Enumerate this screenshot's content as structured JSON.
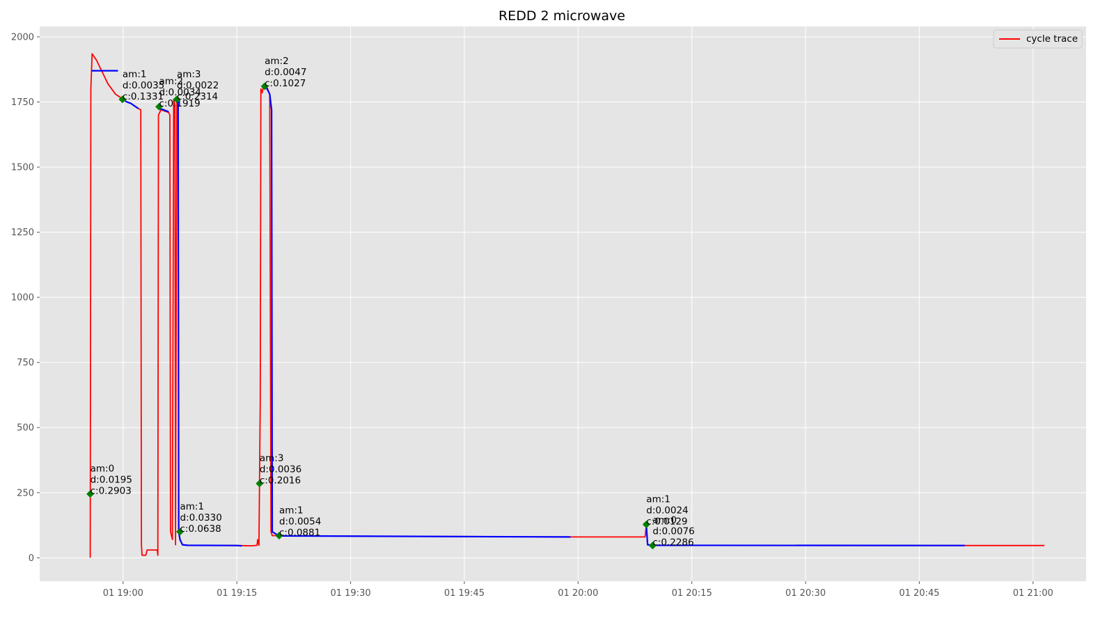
{
  "chart_data": {
    "type": "line",
    "title": "REDD 2 microwave",
    "xlabel": "",
    "ylabel": "",
    "x_axis": {
      "start": "18:45",
      "end": "21:07",
      "unit": "time",
      "date_prefix": "01"
    },
    "xlim": [
      "18:49",
      "21:07"
    ],
    "ylim": [
      -90,
      2040
    ],
    "x_ticks": [
      {
        "t": "19:00",
        "label": "01 19:00"
      },
      {
        "t": "19:15",
        "label": "01 19:15"
      },
      {
        "t": "19:30",
        "label": "01 19:30"
      },
      {
        "t": "19:45",
        "label": "01 19:45"
      },
      {
        "t": "20:00",
        "label": "01 20:00"
      },
      {
        "t": "20:15",
        "label": "01 20:15"
      },
      {
        "t": "20:30",
        "label": "01 20:30"
      },
      {
        "t": "20:45",
        "label": "01 20:45"
      },
      {
        "t": "21:00",
        "label": "01 21:00"
      }
    ],
    "y_ticks": [
      0,
      250,
      500,
      750,
      1000,
      1250,
      1500,
      1750,
      2000
    ],
    "grid": true,
    "legend": {
      "placement": "top-right",
      "entries": [
        {
          "label": "cycle trace",
          "color": "#ff0000"
        }
      ]
    },
    "series": [
      {
        "name": "cycle trace",
        "color": "#ff0000",
        "points": [
          [
            "18:55:40",
            0
          ],
          [
            "18:55:45",
            1800
          ],
          [
            "18:55:55",
            1935
          ],
          [
            "18:56:30",
            1910
          ],
          [
            "18:57:00",
            1880
          ],
          [
            "18:57:30",
            1850
          ],
          [
            "18:58:00",
            1820
          ],
          [
            "18:58:30",
            1800
          ],
          [
            "18:59:00",
            1780
          ],
          [
            "18:59:30",
            1770
          ],
          [
            "19:00:00",
            1760
          ],
          [
            "19:00:30",
            1750
          ],
          [
            "19:01:00",
            1745
          ],
          [
            "19:01:30",
            1735
          ],
          [
            "19:02:00",
            1725
          ],
          [
            "19:02:20",
            1720
          ],
          [
            "19:02:25",
            50
          ],
          [
            "19:02:30",
            10
          ],
          [
            "19:03:00",
            10
          ],
          [
            "19:03:10",
            30
          ],
          [
            "19:04:30",
            30
          ],
          [
            "19:04:35",
            10
          ],
          [
            "19:04:40",
            1700
          ],
          [
            "19:05:00",
            1720
          ],
          [
            "19:05:30",
            1715
          ],
          [
            "19:06:00",
            1710
          ],
          [
            "19:06:10",
            1700
          ],
          [
            "19:06:15",
            100
          ],
          [
            "19:06:30",
            70
          ],
          [
            "19:06:40",
            1760
          ],
          [
            "19:06:50",
            1740
          ],
          [
            "19:06:55",
            50
          ],
          [
            "19:07:05",
            1760
          ],
          [
            "19:07:15",
            1740
          ],
          [
            "19:07:20",
            100
          ],
          [
            "19:07:30",
            70
          ],
          [
            "19:07:50",
            50
          ],
          [
            "19:08:30",
            48
          ],
          [
            "19:15:00",
            47
          ],
          [
            "19:17:00",
            46
          ],
          [
            "19:17:40",
            48
          ],
          [
            "19:17:45",
            70
          ],
          [
            "19:17:55",
            48
          ],
          [
            "19:18:05",
            600
          ],
          [
            "19:18:10",
            1800
          ],
          [
            "19:18:20",
            1785
          ],
          [
            "19:18:30",
            1810
          ],
          [
            "19:19:00",
            1805
          ],
          [
            "19:19:20",
            1780
          ],
          [
            "19:19:30",
            100
          ],
          [
            "19:19:40",
            85
          ],
          [
            "19:20:30",
            85
          ],
          [
            "19:21:00",
            84
          ],
          [
            "20:00:00",
            80
          ],
          [
            "20:08:50",
            80
          ],
          [
            "20:09:00",
            125
          ],
          [
            "20:09:10",
            50
          ],
          [
            "20:10:00",
            48
          ],
          [
            "20:51:00",
            47
          ],
          [
            "21:01:30",
            47
          ]
        ]
      },
      {
        "name": "",
        "color": "#0000ff",
        "points": [
          [
            "18:55:50",
            1870
          ],
          [
            "18:59:20",
            1870
          ]
        ]
      },
      {
        "name": "",
        "color": "#0000ff",
        "points": [
          [
            "19:00:00",
            1760
          ],
          [
            "19:00:30",
            1750
          ],
          [
            "19:01:00",
            1745
          ],
          [
            "19:01:30",
            1735
          ],
          [
            "19:02:00",
            1725
          ]
        ]
      },
      {
        "name": "",
        "color": "#0000ff",
        "points": [
          [
            "19:04:45",
            1725
          ],
          [
            "19:05:20",
            1720
          ],
          [
            "19:06:00",
            1712
          ]
        ]
      },
      {
        "name": "",
        "color": "#0000ff",
        "points": [
          [
            "19:07:15",
            1760
          ],
          [
            "19:07:20",
            100
          ],
          [
            "19:07:30",
            70
          ],
          [
            "19:07:50",
            50
          ],
          [
            "19:08:30",
            48
          ],
          [
            "19:15:00",
            47
          ],
          [
            "19:15:40",
            46
          ]
        ]
      },
      {
        "name": "",
        "color": "#0000ff",
        "points": [
          [
            "19:18:40",
            1810
          ],
          [
            "19:19:00",
            1800
          ],
          [
            "19:19:20",
            1780
          ],
          [
            "19:19:35",
            1720
          ],
          [
            "19:19:40",
            100
          ],
          [
            "19:20:30",
            85
          ],
          [
            "19:21:00",
            84
          ],
          [
            "19:59:00",
            80
          ]
        ]
      },
      {
        "name": "",
        "color": "#0000ff",
        "points": [
          [
            "20:09:00",
            125
          ],
          [
            "20:09:10",
            50
          ],
          [
            "20:10:00",
            48
          ],
          [
            "20:51:00",
            47
          ]
        ]
      }
    ],
    "markers": [
      {
        "t": "18:55:40",
        "y": 245,
        "text": [
          "am:0",
          "d:0.0195",
          "c:0.2903"
        ]
      },
      {
        "t": "18:59:55",
        "y": 1760,
        "text": [
          "am:1",
          "d:0.0035",
          "c:0.1331"
        ]
      },
      {
        "t": "19:04:45",
        "y": 1732,
        "text": [
          "am:2",
          "d:0.0034",
          "c:0.1919"
        ]
      },
      {
        "t": "19:07:05",
        "y": 1760,
        "text": [
          "am:3",
          "d:0.0022",
          "c:0.2314"
        ]
      },
      {
        "t": "19:07:30",
        "y": 100,
        "text": [
          "am:1",
          "d:0.0330",
          "c:0.0638"
        ]
      },
      {
        "t": "19:18:00",
        "y": 285,
        "text": [
          "am:3",
          "d:0.0036",
          "c:0.2016"
        ]
      },
      {
        "t": "19:18:40",
        "y": 1810,
        "text": [
          "am:2",
          "d:0.0047",
          "c:0.1027"
        ]
      },
      {
        "t": "19:20:35",
        "y": 85,
        "text": [
          "am:1",
          "d:0.0054",
          "c:0.0881"
        ]
      },
      {
        "t": "20:09:00",
        "y": 128,
        "text": [
          "am:1",
          "d:0.0024",
          "c:0.0129"
        ]
      },
      {
        "t": "20:09:50",
        "y": 47,
        "text": [
          "am:0",
          "d:0.0076",
          "c:0.2286"
        ]
      }
    ],
    "colors": {
      "plot_background": "#e5e5e5",
      "grid": "#ffffff",
      "marker": "#008000",
      "trace": "#ff0000",
      "segment": "#0000ff"
    }
  }
}
